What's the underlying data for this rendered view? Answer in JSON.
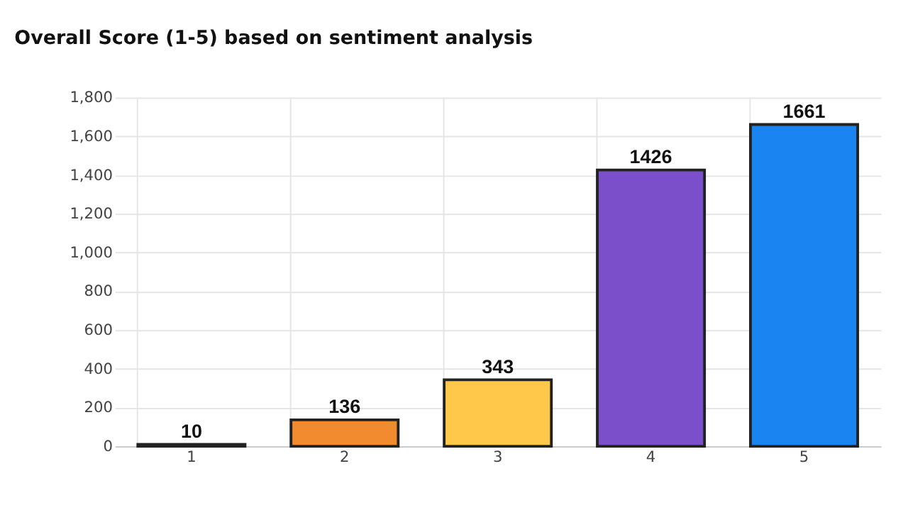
{
  "chart_data": {
    "type": "bar",
    "title": "Overall Score (1-5) based on sentiment analysis",
    "categories": [
      "1",
      "2",
      "3",
      "4",
      "5"
    ],
    "values": [
      10,
      136,
      343,
      1426,
      1661
    ],
    "colors": [
      "#c0392b",
      "#f28a30",
      "#ffc84a",
      "#7b4fc9",
      "#1a85f0"
    ],
    "ylim": [
      0,
      1800
    ],
    "yticks": [
      0,
      200,
      400,
      600,
      800,
      {
        "value": 1000,
        "label": "1,000"
      },
      {
        "value": 1200,
        "label": "1,200"
      },
      {
        "value": 1400,
        "label": "1,400"
      },
      {
        "value": 1600,
        "label": "1,600"
      },
      {
        "value": 1800,
        "label": "1,800"
      }
    ],
    "grid": true,
    "data_labels": true
  }
}
